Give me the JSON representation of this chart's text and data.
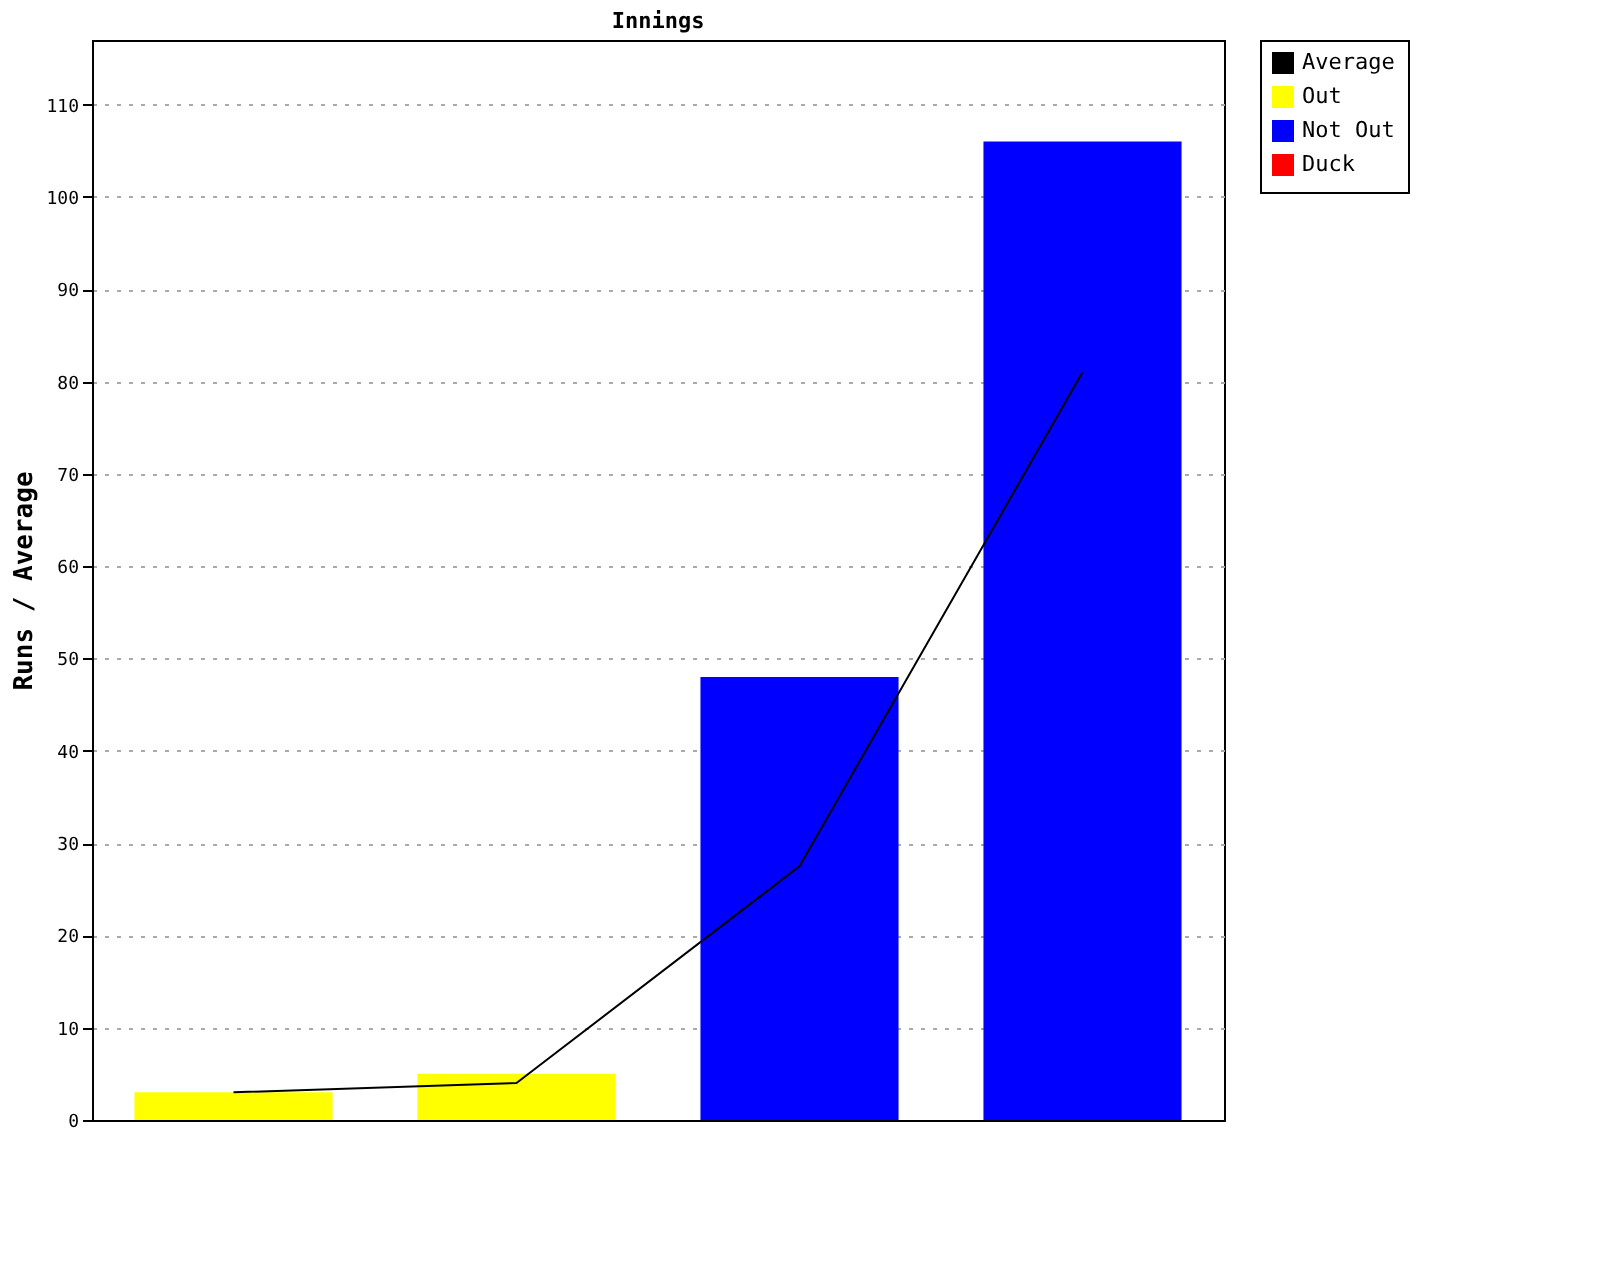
{
  "chart_data": {
    "type": "bar",
    "title": "Innings",
    "ylabel": "Runs / Average",
    "categories": [
      null,
      null,
      null,
      null
    ],
    "series": [
      {
        "name": "Average",
        "type": "line",
        "color": "#000000",
        "values": [
          3,
          4,
          27.5,
          81
        ]
      },
      {
        "name": "Out",
        "color": "#ffff00",
        "values": [
          3,
          5,
          null,
          null
        ]
      },
      {
        "name": "Not Out",
        "color": "#0000ff",
        "values": [
          null,
          null,
          48,
          106
        ]
      },
      {
        "name": "Duck",
        "color": "#ff0000",
        "values": [
          null,
          null,
          null,
          null
        ]
      }
    ],
    "ylim": [
      0,
      117
    ],
    "yticks": [
      0,
      10,
      20,
      30,
      40,
      50,
      60,
      70,
      80,
      90,
      100,
      110
    ],
    "grid": "y",
    "legend": "right",
    "tick_labels": "y"
  }
}
